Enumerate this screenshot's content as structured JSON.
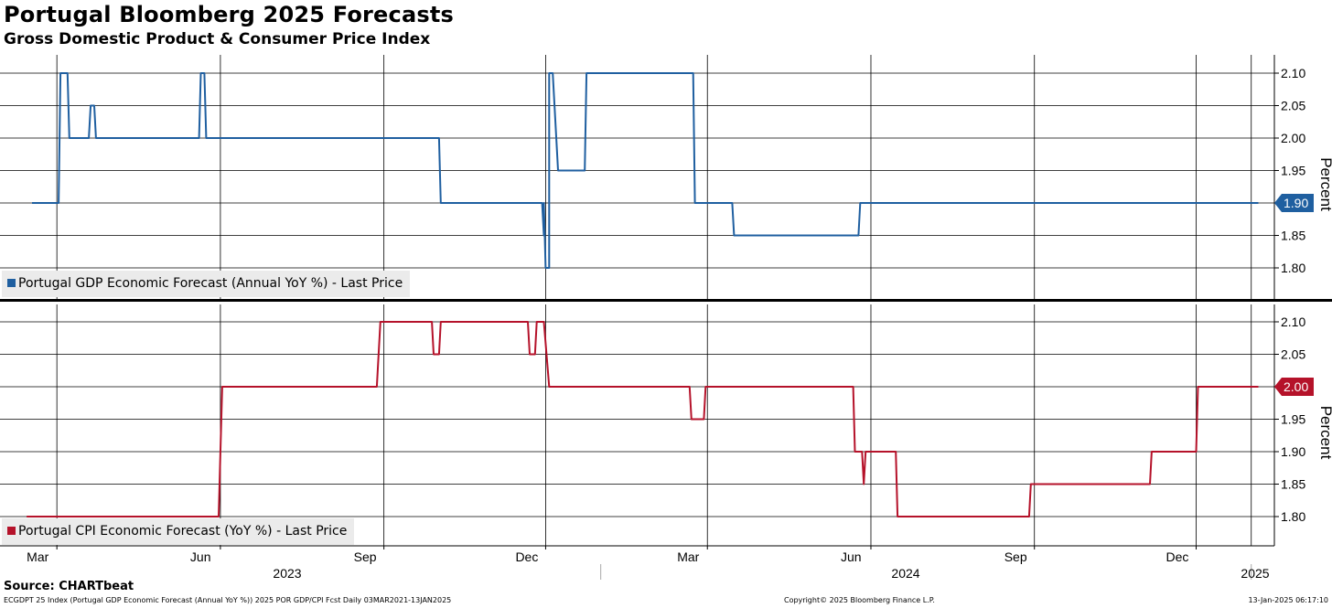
{
  "title": "Portugal Bloomberg 2025 Forecasts",
  "subtitle": "Gross Domestic Product & Consumer Price Index",
  "source": "Source: CHARTbeat",
  "footer": {
    "left": "ECGDPT 25 Index (Portugal GDP Economic Forecast (Annual YoY %)) 2025 POR GDP/CPI Fcst  Daily 03MAR2021-13JAN2025",
    "center": "Copyright© 2025 Bloomberg Finance L.P.",
    "right": "13-Jan-2025 06:17:10"
  },
  "colors": {
    "gdp": "#1f5fa0",
    "cpi": "#b5122a",
    "grid": "#000000"
  },
  "chart_data": [
    {
      "type": "line",
      "panel": "top",
      "ylabel": "Percent",
      "ylim": [
        1.76,
        2.125
      ],
      "yticks": [
        "2.10",
        "2.05",
        "2.00",
        "1.95",
        "1.90",
        "1.85",
        "1.80"
      ],
      "last_value": "1.90",
      "legend": "Portugal GDP Economic Forecast (Annual YoY %) - Last Price",
      "series": [
        {
          "name": "Portugal GDP Economic Forecast (Annual YoY %) - Last Price",
          "x": [
            "2023-02-15",
            "2023-03-02",
            "2023-03-03",
            "2023-03-07",
            "2023-03-08",
            "2023-03-19",
            "2023-03-20",
            "2023-03-22",
            "2023-03-23",
            "2023-03-25",
            "2023-04-17",
            "2023-05-20",
            "2023-05-21",
            "2023-05-23",
            "2023-05-24",
            "2023-05-27",
            "2023-10-02",
            "2023-10-03",
            "2023-11-29",
            "2023-11-30",
            "2023-11-30",
            "2023-12-01",
            "2023-12-02",
            "2023-12-03",
            "2023-12-03",
            "2023-12-04",
            "2023-12-05",
            "2023-12-08",
            "2023-12-09",
            "2023-12-23",
            "2023-12-24",
            "2024-02-22",
            "2024-02-23",
            "2024-03-15",
            "2024-03-16",
            "2024-05-25",
            "2024-05-26",
            "2025-01-05"
          ],
          "y": [
            1.9,
            1.9,
            2.1,
            2.1,
            2.0,
            2.0,
            2.05,
            2.05,
            2.0,
            2.0,
            2.0,
            2.0,
            2.1,
            2.1,
            2.0,
            2.0,
            2.0,
            1.9,
            1.9,
            1.85,
            1.9,
            1.8,
            1.8,
            1.8,
            2.1,
            2.1,
            2.1,
            1.95,
            1.95,
            1.95,
            2.1,
            2.1,
            1.9,
            1.9,
            1.85,
            1.85,
            1.9,
            1.9
          ]
        }
      ]
    },
    {
      "type": "line",
      "panel": "bottom",
      "ylabel": "Percent",
      "ylim": [
        1.75,
        2.125
      ],
      "yticks": [
        "2.10",
        "2.05",
        "2.00",
        "1.95",
        "1.90",
        "1.85",
        "1.80"
      ],
      "last_value": "2.00",
      "legend": "Portugal CPI Economic Forecast (YoY %) - Last Price",
      "series": [
        {
          "name": "Portugal CPI Economic Forecast (YoY %) - Last Price",
          "x": [
            "2023-02-12",
            "2023-05-31",
            "2023-06-02",
            "2023-08-28",
            "2023-08-30",
            "2023-09-28",
            "2023-09-29",
            "2023-10-02",
            "2023-10-03",
            "2023-11-21",
            "2023-11-22",
            "2023-11-25",
            "2023-11-26",
            "2023-11-30",
            "2023-12-03",
            "2024-02-20",
            "2024-02-21",
            "2024-02-28",
            "2024-02-29",
            "2024-05-22",
            "2024-05-23",
            "2024-05-27",
            "2024-05-28",
            "2024-05-29",
            "2024-06-15",
            "2024-06-16",
            "2024-08-29",
            "2024-08-30",
            "2024-11-05",
            "2024-11-06",
            "2024-12-01",
            "2024-12-02",
            "2025-01-05"
          ],
          "y": [
            1.8,
            1.8,
            2.0,
            2.0,
            2.1,
            2.1,
            2.05,
            2.05,
            2.1,
            2.1,
            2.05,
            2.05,
            2.1,
            2.1,
            2.0,
            2.0,
            1.95,
            1.95,
            2.0,
            2.0,
            1.9,
            1.9,
            1.85,
            1.9,
            1.9,
            1.8,
            1.8,
            1.85,
            1.85,
            1.9,
            1.9,
            2.0,
            2.0
          ]
        }
      ]
    }
  ],
  "xaxis": {
    "months": [
      "Mar",
      "Jun",
      "Sep",
      "Dec",
      "Mar",
      "Jun",
      "Sep",
      "Dec"
    ],
    "month_dates": [
      "2023-03-01",
      "2023-06-01",
      "2023-09-01",
      "2023-12-01",
      "2024-03-01",
      "2024-06-01",
      "2024-09-01",
      "2024-12-01"
    ],
    "years": [
      "2023",
      "2024",
      "2025"
    ]
  }
}
